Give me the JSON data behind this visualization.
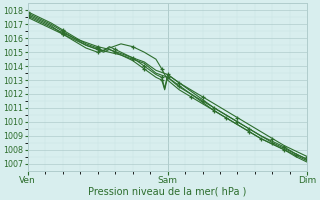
{
  "xlabel": "Pression niveau de la mer( hPa )",
  "xtick_labels": [
    "Ven",
    "Sam",
    "Dim"
  ],
  "xtick_positions": [
    0,
    48,
    96
  ],
  "ylim": [
    1006.5,
    1018.5
  ],
  "yticks": [
    1007,
    1008,
    1009,
    1010,
    1011,
    1012,
    1013,
    1014,
    1015,
    1016,
    1017,
    1018
  ],
  "bg_color": "#d8eeee",
  "grid_major_color": "#b0cccc",
  "grid_minor_color": "#c8e4e4",
  "line_color": "#2d6e2d",
  "series": [
    {
      "x": [
        0,
        4,
        8,
        12,
        16,
        20,
        24,
        28,
        32,
        36,
        40,
        44,
        48,
        52,
        56,
        60,
        64,
        68,
        72,
        76,
        80,
        84,
        88,
        92,
        96
      ],
      "y": [
        1017.5,
        1017.1,
        1016.7,
        1016.3,
        1015.9,
        1015.5,
        1015.2,
        1015.0,
        1014.8,
        1014.5,
        1014.2,
        1013.5,
        1013.2,
        1012.5,
        1012.0,
        1011.5,
        1011.0,
        1010.5,
        1010.0,
        1009.5,
        1009.0,
        1008.5,
        1008.1,
        1007.7,
        1007.3
      ]
    },
    {
      "x": [
        0,
        4,
        8,
        12,
        16,
        20,
        24,
        28,
        32,
        36,
        40,
        44,
        48,
        52,
        56,
        60,
        64,
        68,
        72,
        76,
        80,
        84,
        88,
        92,
        96
      ],
      "y": [
        1017.6,
        1017.2,
        1016.8,
        1016.4,
        1016.0,
        1015.7,
        1015.4,
        1015.2,
        1014.9,
        1014.6,
        1014.3,
        1013.7,
        1013.4,
        1012.8,
        1012.3,
        1011.8,
        1011.3,
        1010.8,
        1010.3,
        1009.8,
        1009.3,
        1008.8,
        1008.3,
        1007.9,
        1007.5
      ]
    },
    {
      "x": [
        0,
        4,
        8,
        12,
        16,
        20,
        24,
        28,
        32,
        36,
        40,
        44,
        46,
        48,
        52,
        56,
        60,
        64,
        68,
        72,
        76,
        80,
        84,
        88,
        92,
        96
      ],
      "y": [
        1017.7,
        1017.3,
        1016.9,
        1016.3,
        1015.8,
        1015.3,
        1015.0,
        1015.3,
        1015.6,
        1015.4,
        1015.0,
        1014.5,
        1013.8,
        1013.0,
        1012.3,
        1011.8,
        1011.3,
        1010.8,
        1010.3,
        1009.8,
        1009.3,
        1008.8,
        1008.4,
        1008.0,
        1007.6,
        1007.2
      ]
    },
    {
      "x": [
        0,
        4,
        8,
        12,
        16,
        20,
        24,
        26,
        28,
        30,
        32,
        36,
        40,
        42,
        44,
        46,
        47,
        48,
        52,
        56,
        60,
        64,
        68,
        72,
        76,
        80,
        84,
        88,
        92,
        96
      ],
      "y": [
        1017.8,
        1017.4,
        1017.0,
        1016.5,
        1016.0,
        1015.5,
        1015.2,
        1015.0,
        1015.2,
        1015.0,
        1014.8,
        1014.4,
        1013.8,
        1013.5,
        1013.2,
        1013.0,
        1012.3,
        1013.2,
        1012.6,
        1012.0,
        1011.4,
        1010.8,
        1010.3,
        1009.8,
        1009.3,
        1008.8,
        1008.4,
        1008.0,
        1007.5,
        1007.1
      ]
    },
    {
      "x": [
        0,
        4,
        8,
        12,
        16,
        20,
        24,
        26,
        28,
        30,
        32,
        36,
        40,
        42,
        44,
        46,
        47,
        48,
        52,
        56,
        60,
        64,
        68,
        72,
        76,
        80,
        84,
        88,
        92,
        96
      ],
      "y": [
        1017.9,
        1017.5,
        1017.1,
        1016.6,
        1016.1,
        1015.6,
        1015.3,
        1015.1,
        1015.4,
        1015.2,
        1015.0,
        1014.6,
        1014.0,
        1013.7,
        1013.4,
        1013.2,
        1012.4,
        1013.4,
        1012.8,
        1012.2,
        1011.6,
        1011.0,
        1010.5,
        1010.0,
        1009.5,
        1009.0,
        1008.6,
        1008.2,
        1007.7,
        1007.3
      ]
    }
  ]
}
